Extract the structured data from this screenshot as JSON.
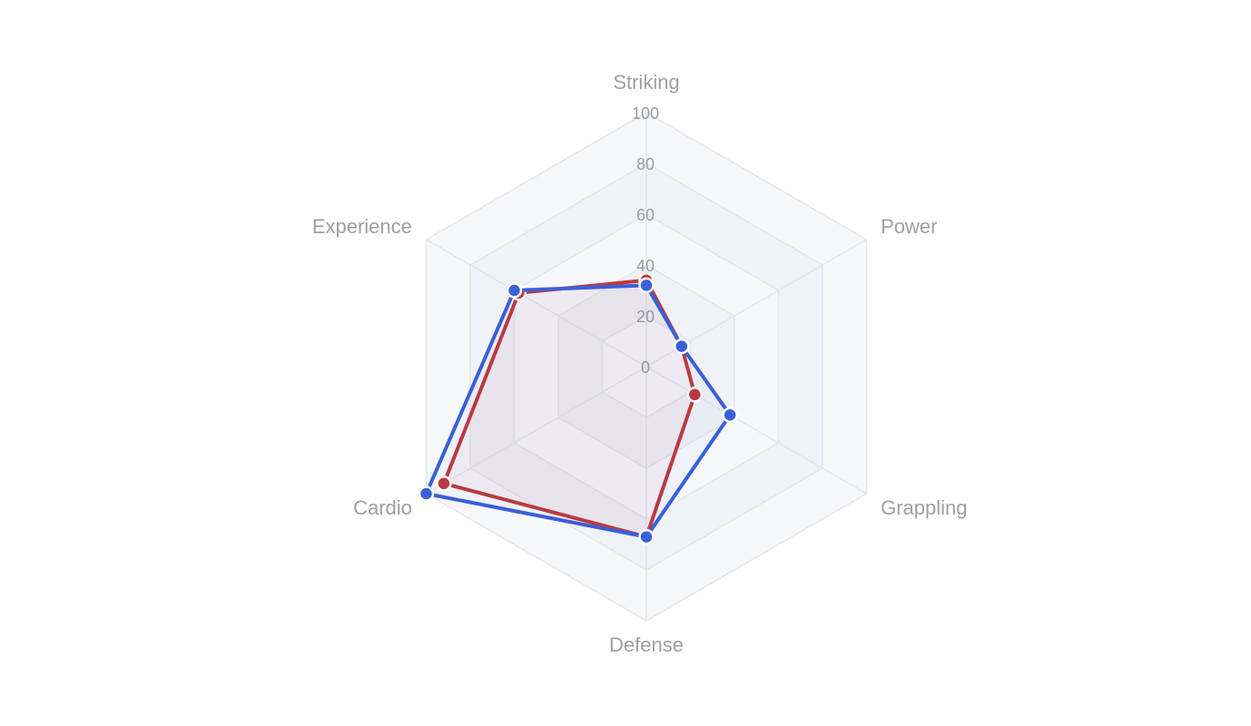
{
  "chart_data": {
    "type": "radar",
    "axes": [
      "Striking",
      "Power",
      "Grappling",
      "Defense",
      "Cardio",
      "Experience"
    ],
    "r_ticks": [
      "0",
      "20",
      "40",
      "60",
      "80",
      "100"
    ],
    "rlim": [
      0,
      100
    ],
    "grid": true,
    "legend": "none",
    "series": [
      {
        "values": [
          34,
          16,
          22,
          67,
          92,
          58
        ],
        "color": "#c0393b"
      },
      {
        "values": [
          32,
          16,
          38,
          67,
          100,
          60
        ],
        "color": "#3a5fd9"
      }
    ]
  }
}
